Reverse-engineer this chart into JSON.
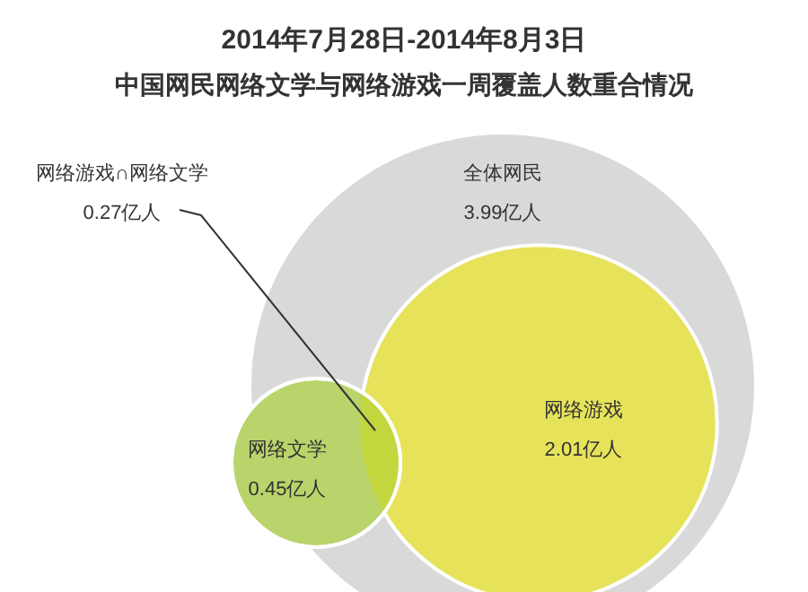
{
  "chart_data": {
    "type": "other",
    "title": "2014年7月28日-2014年8月3日",
    "subtitle": "中国网民网络文学与网络游戏一周覆盖人数重合情况",
    "categories": [
      "全体网民",
      "网络游戏",
      "网络文学",
      "网络游戏∩网络文学"
    ],
    "values": [
      3.99,
      2.01,
      0.45,
      0.27
    ],
    "value_labels": [
      "3.99亿人",
      "2.01亿人",
      "0.45亿人",
      "0.27亿人"
    ],
    "colors": [
      "#d9d9d9",
      "#e6e35a",
      "#b9d46a",
      "#c4d63e"
    ]
  }
}
